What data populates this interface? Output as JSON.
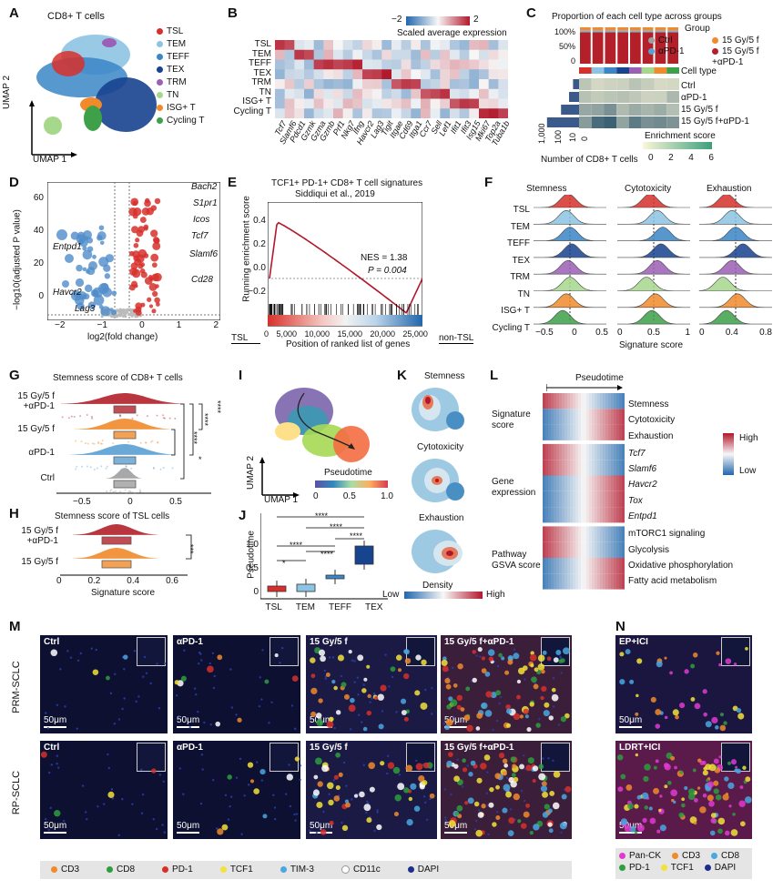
{
  "panels": {
    "A": {
      "letter": "A",
      "title": "CD8+ T cells",
      "xlabel": "UMAP 1",
      "ylabel": "UMAP 2",
      "legend": [
        {
          "label": "TSL",
          "color": "#d7302b"
        },
        {
          "label": "TEM",
          "color": "#8dc4e3"
        },
        {
          "label": "TEFF",
          "color": "#3a86c6"
        },
        {
          "label": "TEX",
          "color": "#17438f"
        },
        {
          "label": "TRM",
          "color": "#9b5fb5"
        },
        {
          "label": "TN",
          "color": "#a6d88c"
        },
        {
          "label": "ISG+ T",
          "color": "#f08a2b"
        },
        {
          "label": "Cycling T",
          "color": "#3ea14a"
        }
      ]
    },
    "B": {
      "letter": "B",
      "colorbar_min": "−2",
      "colorbar_max": "2",
      "colorbar_title": "Scaled average expression",
      "rows": [
        "TSL",
        "TEM",
        "TEFF",
        "TEX",
        "TRM",
        "TN",
        "ISG+ T",
        "Cycling T"
      ],
      "genes": [
        "Tcf7",
        "Slamf6",
        "Pdcd1",
        "Gzmk",
        "Gzma",
        "Gzmb",
        "Prf1",
        "Nkg7",
        "Ifng",
        "Havcr2",
        "Lag3",
        "Tigit",
        "Itgae",
        "Cd69",
        "Itga1",
        "Ccr7",
        "Sell",
        "Lef1",
        "Ifit1",
        "Ifit3",
        "Isg15",
        "Mki67",
        "Top2a",
        "Tuba1b"
      ]
    },
    "C": {
      "letter": "C",
      "title": "Proportion of each cell type across groups",
      "yticks": [
        "100%",
        "50%",
        "0"
      ],
      "legend_title": "Group",
      "legend": [
        {
          "label": "Ctrl",
          "color": "#9e9e9e"
        },
        {
          "label": "15 Gy/5 f",
          "color": "#f08a2b"
        },
        {
          "label": "αPD-1",
          "color": "#5a9fd4"
        },
        {
          "label": "15 Gy/5 f +αPD-1",
          "color": "#b3202a"
        }
      ],
      "celltype_label": "Cell type",
      "groups": [
        "Ctrl",
        "αPD-1",
        "15 Gy/5 f",
        "15 Gy/5 f+αPD-1"
      ],
      "count_ticks": [
        "1,000",
        "100",
        "10",
        "0"
      ],
      "count_label": "Number of CD8+ T cells",
      "enrich_label": "Enrichment score",
      "enrich_ticks": [
        "0",
        "2",
        "4",
        "6"
      ]
    },
    "D": {
      "letter": "D",
      "ylabel": "−log10(adjusted P value)",
      "xlabel": "log2(fold change)",
      "xticks": [
        "−2",
        "−1",
        "0",
        "1",
        "2"
      ],
      "yticks": [
        "60",
        "40",
        "20",
        "0"
      ],
      "genes_up": [
        "Bach2",
        "S1pr1",
        "Icos",
        "Tcf7",
        "Slamf6",
        "Cd28"
      ],
      "genes_down": [
        "Entpd1",
        "Havcr2",
        "Lag3"
      ]
    },
    "E": {
      "letter": "E",
      "title": "TCF1+ PD-1+ CD8+ T cell signatures",
      "subtitle": "Siddiqui et al., 2019",
      "ylabel": "Running enrichment score",
      "xlabel": "Position of ranked list of genes",
      "nes": "NES = 1.38",
      "pval": "P = 0.004",
      "yticks": [
        "0.4",
        "0.2",
        "0.0",
        "−0.2"
      ],
      "xticks": [
        "0",
        "5,000",
        "10,000",
        "15,000",
        "20,000",
        "25,000"
      ],
      "left_label": "TSL",
      "right_label": "non-TSL"
    },
    "F": {
      "letter": "F",
      "cols": [
        "Stemness",
        "Cytotoxicity",
        "Exhaustion"
      ],
      "rows": [
        "TSL",
        "TEM",
        "TEFF",
        "TEX",
        "TRM",
        "TN",
        "ISG+ T",
        "Cycling T"
      ],
      "xticks1": [
        "−0.5",
        "0",
        "0.5"
      ],
      "xticks2": [
        "0",
        "0.5",
        "1"
      ],
      "xticks3": [
        "0",
        "0.4",
        "0.8"
      ],
      "xlabel": "Signature score"
    },
    "G": {
      "letter": "G",
      "title": "Stemness score of CD8+ T cells",
      "groups": [
        "15 Gy/5 f +αPD-1",
        "15 Gy/5 f",
        "αPD-1",
        "Ctrl"
      ],
      "xticks": [
        "−0.5",
        "0",
        "0.5"
      ],
      "sig": [
        "****",
        "****",
        "****",
        "*"
      ]
    },
    "H": {
      "letter": "H",
      "title": "Stemness score of TSL cells",
      "groups": [
        "15 Gy/5 f +αPD-1",
        "15 Gy/5 f"
      ],
      "xticks": [
        "0",
        "0.2",
        "0.4",
        "0.6"
      ],
      "xlabel": "Signature score",
      "sig": "***"
    },
    "I": {
      "letter": "I",
      "xlabel": "UMAP 1",
      "ylabel": "UMAP 2",
      "cbar_title": "Pseudotime",
      "cbar_ticks": [
        "0",
        "0.5",
        "1.0"
      ]
    },
    "J": {
      "letter": "J",
      "ylabel": "Pseudotime",
      "yticks": [
        "1.0",
        "0.5",
        "0"
      ],
      "xticks": [
        "TSL",
        "TEM",
        "TEFF",
        "TEX"
      ],
      "sig": [
        "****",
        "****",
        "****",
        "****",
        "****",
        "*"
      ]
    },
    "K": {
      "letter": "K",
      "maps": [
        "Stemness",
        "Cytotoxicity",
        "Exhaustion"
      ],
      "cbar_title": "Density",
      "low": "Low",
      "high": "High"
    },
    "L": {
      "letter": "L",
      "pseudotime": "Pseudotime",
      "sections": [
        {
          "title": "Signature score",
          "rows": [
            "Stemness",
            "Cytotoxicity",
            "Exhaustion"
          ]
        },
        {
          "title": "Gene expression",
          "rows": [
            "Tcf7",
            "Slamf6",
            "Havcr2",
            "Tox",
            "Entpd1"
          ]
        },
        {
          "title": "Pathway GSVA score",
          "rows": [
            "mTORC1 signaling",
            "Glycolysis",
            "Oxidative phosphorylation",
            "Fatty acid metabolism"
          ]
        }
      ],
      "high": "High",
      "low": "Low"
    },
    "M": {
      "letter": "M",
      "row_labels": [
        "PRM-SCLC",
        "RP-SCLC"
      ],
      "cols": [
        "Ctrl",
        "αPD-1",
        "15 Gy/5 f",
        "15 Gy/5 f+αPD-1"
      ],
      "scale": "50μm",
      "legend": [
        {
          "label": "CD3",
          "color": "#f08a2b"
        },
        {
          "label": "CD8",
          "color": "#2e9e3e"
        },
        {
          "label": "PD-1",
          "color": "#d7302b"
        },
        {
          "label": "TCF1",
          "color": "#f2e23a"
        },
        {
          "label": "TIM-3",
          "color": "#4aa7e0"
        },
        {
          "label": "CD11c",
          "color": "#ffffff"
        },
        {
          "label": "DAPI",
          "color": "#1c2e8c"
        }
      ]
    },
    "N": {
      "letter": "N",
      "panels": [
        "EP+ICI",
        "LDRT+ICI"
      ],
      "scale": "50μm",
      "legend": [
        {
          "label": "Pan-CK",
          "color": "#e03ad0"
        },
        {
          "label": "CD3",
          "color": "#f08a2b"
        },
        {
          "label": "CD8",
          "color": "#4aa7e0"
        },
        {
          "label": "PD-1",
          "color": "#2e9e3e"
        },
        {
          "label": "TCF1",
          "color": "#f2e23a"
        },
        {
          "label": "DAPI",
          "color": "#1c2e8c"
        }
      ]
    }
  }
}
